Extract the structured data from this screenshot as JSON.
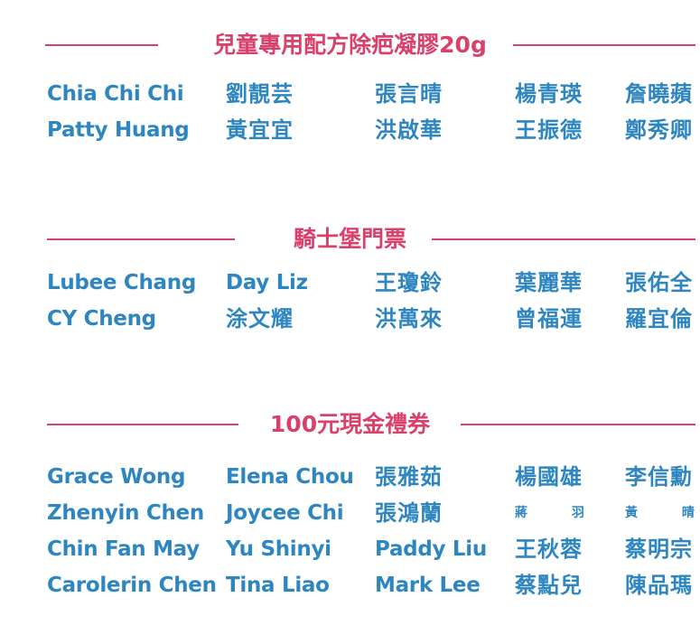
{
  "sections": [
    {
      "title": "兒童專用配方除疤凝膠20g",
      "rows": [
        [
          "Chia Chi Chi",
          "劉靚芸",
          "張言晴",
          "楊青瑛",
          "詹曉蘋"
        ],
        [
          "Patty Huang",
          "黃宜宜",
          "洪啟華",
          "王振德",
          "鄭秀卿"
        ]
      ]
    },
    {
      "title": "騎士堡門票",
      "rows": [
        [
          "Lubee Chang",
          "Day Liz",
          "王瓊鈴",
          "葉麗華",
          "張佑全"
        ],
        [
          "CY Cheng",
          "涂文耀",
          "洪萬來",
          "曾福運",
          "羅宜倫"
        ]
      ]
    },
    {
      "title": "100元現金禮券",
      "rows": [
        [
          "Grace Wong",
          "Elena Chou",
          "張雅茹",
          "楊國雄",
          "李信勳"
        ],
        [
          "Zhenyin Chen",
          "Joycee Chi",
          "張鴻蘭",
          "蔣 羽",
          "黃 晴"
        ],
        [
          "Chin Fan May",
          "Yu Shinyi",
          "Paddy Liu",
          "王秋蓉",
          "蔡明宗"
        ],
        [
          "Carolerin Chen",
          "Tina Liao",
          "Mark Lee",
          "蔡點兒",
          "陳品瑪"
        ]
      ]
    }
  ],
  "colors": {
    "heading": "#d9416b",
    "name": "#2e86c1",
    "rule": "#d9416b"
  }
}
